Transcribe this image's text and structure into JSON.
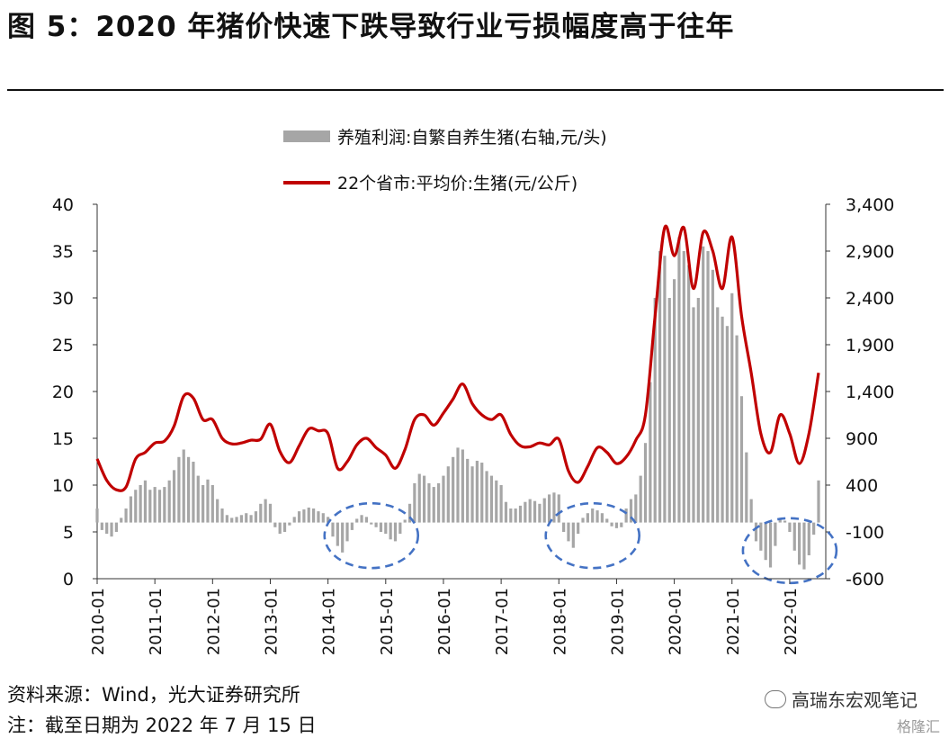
{
  "title": "图 5：2020 年猪价快速下跌导致行业亏损幅度高于往年",
  "source": "资料来源：Wind，光大证券研究所",
  "note": "注：截至日期为 2022 年 7 月 15 日",
  "watermark": {
    "channel": "高瑞东宏观笔记",
    "logo": "格隆汇"
  },
  "colors": {
    "price": "#c00000",
    "profit": "#a6a6a6",
    "ellipse": "#4472c4"
  },
  "chart_data": {
    "type": "bar+line",
    "legend": {
      "placement": "top-center",
      "items": [
        {
          "label": "养殖利润:自繁自养生猪(右轴,元/头)",
          "kind": "bar",
          "color": "#a6a6a6"
        },
        {
          "label": "22个省市:平均价:生猪(元/公斤)",
          "kind": "line",
          "color": "#c00000"
        }
      ]
    },
    "left_axis": {
      "ylim": [
        0,
        40
      ],
      "ticks": [
        "0",
        "5",
        "10",
        "15",
        "20",
        "25",
        "30",
        "35",
        "40"
      ]
    },
    "right_axis": {
      "ylim": [
        -600,
        3400
      ],
      "ticks": [
        "-600",
        "-100",
        "400",
        "900",
        "1,400",
        "1,900",
        "2,400",
        "2,900",
        "3,400"
      ]
    },
    "x_ticks": [
      "2010-01",
      "2011-01",
      "2012-01",
      "2013-01",
      "2014-01",
      "2015-01",
      "2016-01",
      "2017-01",
      "2018-01",
      "2019-01",
      "2020-01",
      "2021-01",
      "2022-01"
    ],
    "x_range": [
      "2010-01",
      "2022-07"
    ],
    "series": [
      {
        "name": "22个省市:平均价:生猪",
        "axis": "left",
        "type": "line",
        "points": [
          [
            "2010-01",
            12.8
          ],
          [
            "2010-03",
            10.5
          ],
          [
            "2010-05",
            9.5
          ],
          [
            "2010-07",
            9.8
          ],
          [
            "2010-09",
            12.8
          ],
          [
            "2010-11",
            13.5
          ],
          [
            "2011-01",
            14.5
          ],
          [
            "2011-03",
            14.7
          ],
          [
            "2011-05",
            16.3
          ],
          [
            "2011-07",
            19.5
          ],
          [
            "2011-09",
            19.3
          ],
          [
            "2011-11",
            17.0
          ],
          [
            "2012-01",
            17.0
          ],
          [
            "2012-03",
            15.0
          ],
          [
            "2012-05",
            14.4
          ],
          [
            "2012-07",
            14.5
          ],
          [
            "2012-09",
            14.8
          ],
          [
            "2012-11",
            14.9
          ],
          [
            "2013-01",
            16.5
          ],
          [
            "2013-03",
            13.6
          ],
          [
            "2013-05",
            12.4
          ],
          [
            "2013-07",
            14.2
          ],
          [
            "2013-09",
            16.0
          ],
          [
            "2013-11",
            15.8
          ],
          [
            "2014-01",
            15.5
          ],
          [
            "2014-03",
            11.8
          ],
          [
            "2014-05",
            12.5
          ],
          [
            "2014-07",
            14.3
          ],
          [
            "2014-09",
            15.0
          ],
          [
            "2014-11",
            14.0
          ],
          [
            "2015-01",
            13.2
          ],
          [
            "2015-03",
            11.8
          ],
          [
            "2015-05",
            13.8
          ],
          [
            "2015-07",
            17.0
          ],
          [
            "2015-09",
            17.5
          ],
          [
            "2015-11",
            16.4
          ],
          [
            "2016-01",
            17.7
          ],
          [
            "2016-03",
            19.2
          ],
          [
            "2016-05",
            20.8
          ],
          [
            "2016-07",
            18.7
          ],
          [
            "2016-09",
            17.5
          ],
          [
            "2016-11",
            17.0
          ],
          [
            "2017-01",
            17.5
          ],
          [
            "2017-03",
            15.4
          ],
          [
            "2017-05",
            14.2
          ],
          [
            "2017-07",
            14.1
          ],
          [
            "2017-09",
            14.5
          ],
          [
            "2017-11",
            14.3
          ],
          [
            "2018-01",
            14.9
          ],
          [
            "2018-03",
            11.5
          ],
          [
            "2018-05",
            10.3
          ],
          [
            "2018-07",
            12.0
          ],
          [
            "2018-09",
            14.0
          ],
          [
            "2018-11",
            13.5
          ],
          [
            "2019-01",
            12.3
          ],
          [
            "2019-03",
            13.0
          ],
          [
            "2019-05",
            14.8
          ],
          [
            "2019-07",
            17.5
          ],
          [
            "2019-09",
            28.0
          ],
          [
            "2019-11",
            37.5
          ],
          [
            "2020-01",
            34.5
          ],
          [
            "2020-03",
            37.5
          ],
          [
            "2020-05",
            31.0
          ],
          [
            "2020-07",
            37.0
          ],
          [
            "2020-09",
            35.0
          ],
          [
            "2020-11",
            31.0
          ],
          [
            "2021-01",
            36.5
          ],
          [
            "2021-03",
            28.0
          ],
          [
            "2021-05",
            22.0
          ],
          [
            "2021-07",
            15.5
          ],
          [
            "2021-09",
            13.5
          ],
          [
            "2021-11",
            17.5
          ],
          [
            "2022-01",
            15.5
          ],
          [
            "2022-03",
            12.3
          ],
          [
            "2022-05",
            15.5
          ],
          [
            "2022-07",
            22.0
          ]
        ]
      },
      {
        "name": "养殖利润:自繁自养生猪",
        "axis": "right",
        "type": "bar",
        "points": [
          [
            "2010-01",
            150
          ],
          [
            "2010-02",
            -80
          ],
          [
            "2010-03",
            -120
          ],
          [
            "2010-04",
            -150
          ],
          [
            "2010-05",
            -100
          ],
          [
            "2010-06",
            50
          ],
          [
            "2010-07",
            150
          ],
          [
            "2010-08",
            280
          ],
          [
            "2010-09",
            350
          ],
          [
            "2010-10",
            400
          ],
          [
            "2010-11",
            450
          ],
          [
            "2010-12",
            350
          ],
          [
            "2011-01",
            380
          ],
          [
            "2011-02",
            350
          ],
          [
            "2011-03",
            380
          ],
          [
            "2011-04",
            450
          ],
          [
            "2011-05",
            560
          ],
          [
            "2011-06",
            700
          ],
          [
            "2011-07",
            780
          ],
          [
            "2011-08",
            700
          ],
          [
            "2011-09",
            650
          ],
          [
            "2011-10",
            500
          ],
          [
            "2011-11",
            400
          ],
          [
            "2011-12",
            460
          ],
          [
            "2012-01",
            400
          ],
          [
            "2012-02",
            250
          ],
          [
            "2012-03",
            150
          ],
          [
            "2012-04",
            80
          ],
          [
            "2012-05",
            50
          ],
          [
            "2012-06",
            60
          ],
          [
            "2012-07",
            80
          ],
          [
            "2012-08",
            100
          ],
          [
            "2012-09",
            80
          ],
          [
            "2012-10",
            120
          ],
          [
            "2012-11",
            200
          ],
          [
            "2012-12",
            250
          ],
          [
            "2013-01",
            200
          ],
          [
            "2013-02",
            -50
          ],
          [
            "2013-03",
            -120
          ],
          [
            "2013-04",
            -100
          ],
          [
            "2013-05",
            -30
          ],
          [
            "2013-06",
            60
          ],
          [
            "2013-07",
            120
          ],
          [
            "2013-08",
            140
          ],
          [
            "2013-09",
            160
          ],
          [
            "2013-10",
            150
          ],
          [
            "2013-11",
            120
          ],
          [
            "2013-12",
            100
          ],
          [
            "2014-01",
            60
          ],
          [
            "2014-02",
            -150
          ],
          [
            "2014-03",
            -250
          ],
          [
            "2014-04",
            -320
          ],
          [
            "2014-05",
            -200
          ],
          [
            "2014-06",
            -80
          ],
          [
            "2014-07",
            40
          ],
          [
            "2014-08",
            80
          ],
          [
            "2014-09",
            60
          ],
          [
            "2014-10",
            -20
          ],
          [
            "2014-11",
            -50
          ],
          [
            "2014-12",
            -100
          ],
          [
            "2015-01",
            -120
          ],
          [
            "2015-02",
            -180
          ],
          [
            "2015-03",
            -200
          ],
          [
            "2015-04",
            -120
          ],
          [
            "2015-05",
            30
          ],
          [
            "2015-06",
            200
          ],
          [
            "2015-07",
            420
          ],
          [
            "2015-08",
            520
          ],
          [
            "2015-09",
            500
          ],
          [
            "2015-10",
            420
          ],
          [
            "2015-11",
            380
          ],
          [
            "2015-12",
            420
          ],
          [
            "2016-01",
            500
          ],
          [
            "2016-02",
            600
          ],
          [
            "2016-03",
            700
          ],
          [
            "2016-04",
            800
          ],
          [
            "2016-05",
            780
          ],
          [
            "2016-06",
            680
          ],
          [
            "2016-07",
            600
          ],
          [
            "2016-08",
            660
          ],
          [
            "2016-09",
            640
          ],
          [
            "2016-10",
            550
          ],
          [
            "2016-11",
            500
          ],
          [
            "2016-12",
            450
          ],
          [
            "2017-01",
            400
          ],
          [
            "2017-02",
            220
          ],
          [
            "2017-03",
            150
          ],
          [
            "2017-04",
            150
          ],
          [
            "2017-05",
            180
          ],
          [
            "2017-06",
            220
          ],
          [
            "2017-07",
            250
          ],
          [
            "2017-08",
            230
          ],
          [
            "2017-09",
            200
          ],
          [
            "2017-10",
            260
          ],
          [
            "2017-11",
            300
          ],
          [
            "2017-12",
            320
          ],
          [
            "2018-01",
            300
          ],
          [
            "2018-02",
            -100
          ],
          [
            "2018-03",
            -200
          ],
          [
            "2018-04",
            -270
          ],
          [
            "2018-05",
            -120
          ],
          [
            "2018-06",
            50
          ],
          [
            "2018-07",
            100
          ],
          [
            "2018-08",
            150
          ],
          [
            "2018-09",
            130
          ],
          [
            "2018-10",
            100
          ],
          [
            "2018-11",
            40
          ],
          [
            "2018-12",
            -40
          ],
          [
            "2019-01",
            -60
          ],
          [
            "2019-02",
            -50
          ],
          [
            "2019-03",
            150
          ],
          [
            "2019-04",
            250
          ],
          [
            "2019-05",
            300
          ],
          [
            "2019-06",
            500
          ],
          [
            "2019-07",
            850
          ],
          [
            "2019-08",
            1500
          ],
          [
            "2019-09",
            2400
          ],
          [
            "2019-10",
            2900
          ],
          [
            "2019-11",
            2850
          ],
          [
            "2019-12",
            2400
          ],
          [
            "2020-01",
            2600
          ],
          [
            "2020-02",
            3050
          ],
          [
            "2020-03",
            2900
          ],
          [
            "2020-04",
            2750
          ],
          [
            "2020-05",
            2300
          ],
          [
            "2020-06",
            2400
          ],
          [
            "2020-07",
            2950
          ],
          [
            "2020-08",
            2900
          ],
          [
            "2020-09",
            2700
          ],
          [
            "2020-10",
            2300
          ],
          [
            "2020-11",
            2200
          ],
          [
            "2020-12",
            2100
          ],
          [
            "2021-01",
            2450
          ],
          [
            "2021-02",
            2000
          ],
          [
            "2021-03",
            1350
          ],
          [
            "2021-04",
            750
          ],
          [
            "2021-05",
            250
          ],
          [
            "2021-06",
            -200
          ],
          [
            "2021-07",
            -300
          ],
          [
            "2021-08",
            -400
          ],
          [
            "2021-09",
            -480
          ],
          [
            "2021-10",
            -250
          ],
          [
            "2021-11",
            50
          ],
          [
            "2021-12",
            20
          ],
          [
            "2022-01",
            -100
          ],
          [
            "2022-02",
            -300
          ],
          [
            "2022-03",
            -450
          ],
          [
            "2022-04",
            -500
          ],
          [
            "2022-05",
            -350
          ],
          [
            "2022-06",
            -130
          ],
          [
            "2022-07",
            450
          ]
        ]
      }
    ],
    "highlights": [
      {
        "shape": "ellipse",
        "x_center": "2014-10",
        "y_center_left": 4.6
      },
      {
        "shape": "ellipse",
        "x_center": "2018-08",
        "y_center_left": 4.6
      },
      {
        "shape": "ellipse",
        "x_center": "2022-01",
        "y_center_left": 3.0
      }
    ]
  }
}
